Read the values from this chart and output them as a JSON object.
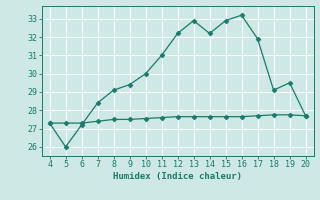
{
  "xlabel": "Humidex (Indice chaleur)",
  "x": [
    4,
    5,
    6,
    7,
    8,
    9,
    10,
    11,
    12,
    13,
    14,
    15,
    16,
    17,
    18,
    19,
    20
  ],
  "y_main": [
    27.3,
    26.0,
    27.2,
    28.4,
    29.1,
    29.4,
    30.0,
    31.0,
    32.2,
    32.9,
    32.2,
    32.9,
    33.2,
    31.9,
    29.1,
    29.5,
    27.7
  ],
  "y_ref": [
    27.3,
    27.3,
    27.3,
    27.4,
    27.5,
    27.5,
    27.55,
    27.6,
    27.65,
    27.65,
    27.65,
    27.65,
    27.65,
    27.7,
    27.75,
    27.75,
    27.7
  ],
  "line_color": "#1a7a6e",
  "bg_color": "#cde8e5",
  "grid_color": "#b0d4d0",
  "xlim": [
    3.5,
    20.5
  ],
  "ylim": [
    25.5,
    33.7
  ],
  "yticks": [
    26,
    27,
    28,
    29,
    30,
    31,
    32,
    33
  ],
  "xticks": [
    4,
    5,
    6,
    7,
    8,
    9,
    10,
    11,
    12,
    13,
    14,
    15,
    16,
    17,
    18,
    19,
    20
  ],
  "marker_size": 2.5,
  "line_width": 0.9,
  "tick_fontsize": 6.0,
  "xlabel_fontsize": 6.5
}
